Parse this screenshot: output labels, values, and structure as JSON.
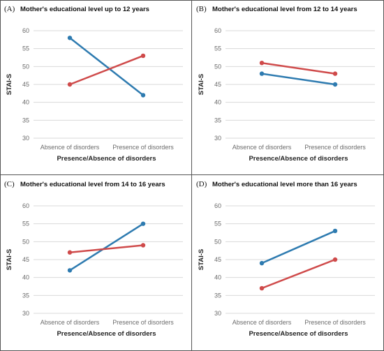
{
  "chart_data": [
    {
      "type": "line",
      "panel_label": "(A)",
      "title": "Mother's educational level up to 12 years",
      "xlabel": "Presence/Absence of disorders",
      "ylabel": "STAI-S",
      "categories": [
        "Absence of disorders",
        "Presence of disorders"
      ],
      "ylim": [
        30,
        60
      ],
      "yticks": [
        30,
        35,
        40,
        45,
        50,
        55,
        60
      ],
      "grid": true,
      "series": [
        {
          "color": "#2e7bb0",
          "values": [
            58,
            42
          ]
        },
        {
          "color": "#cf4a4a",
          "values": [
            45,
            53
          ]
        }
      ]
    },
    {
      "type": "line",
      "panel_label": "(B)",
      "title": "Mother's educational level from 12 to 14 years",
      "xlabel": "Presence/Absence of disorders",
      "ylabel": "STAI-S",
      "categories": [
        "Absence of disorders",
        "Presence of disorders"
      ],
      "ylim": [
        30,
        60
      ],
      "yticks": [
        30,
        35,
        40,
        45,
        50,
        55,
        60
      ],
      "grid": true,
      "series": [
        {
          "color": "#2e7bb0",
          "values": [
            48,
            45
          ]
        },
        {
          "color": "#cf4a4a",
          "values": [
            51,
            48
          ]
        }
      ]
    },
    {
      "type": "line",
      "panel_label": "(C)",
      "title": "Mother's educational level from 14 to 16 years",
      "xlabel": "Presence/Absence of disorders",
      "ylabel": "STAI-S",
      "categories": [
        "Absence of disorders",
        "Presence of disorders"
      ],
      "ylim": [
        30,
        60
      ],
      "yticks": [
        30,
        35,
        40,
        45,
        50,
        55,
        60
      ],
      "grid": true,
      "series": [
        {
          "color": "#2e7bb0",
          "values": [
            42,
            55
          ]
        },
        {
          "color": "#cf4a4a",
          "values": [
            47,
            49
          ]
        }
      ]
    },
    {
      "type": "line",
      "panel_label": "(D)",
      "title": "Mother's educational level more than 16 years",
      "xlabel": "Presence/Absence of disorders",
      "ylabel": "STAI-S",
      "categories": [
        "Absence of disorders",
        "Presence of disorders"
      ],
      "ylim": [
        30,
        60
      ],
      "yticks": [
        30,
        35,
        40,
        45,
        50,
        55,
        60
      ],
      "grid": true,
      "series": [
        {
          "color": "#2e7bb0",
          "values": [
            44,
            53
          ]
        },
        {
          "color": "#cf4a4a",
          "values": [
            37,
            45
          ]
        }
      ]
    }
  ]
}
